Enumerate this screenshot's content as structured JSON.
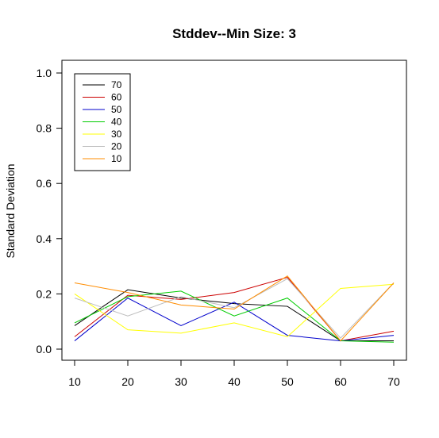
{
  "chart_data": {
    "type": "line",
    "title": "Stddev--Min Size: 3",
    "xlabel": "",
    "ylabel": "Standard Deviation",
    "x": [
      10,
      20,
      30,
      40,
      50,
      60,
      70
    ],
    "xlim": [
      10,
      70
    ],
    "ylim": [
      0,
      1.0
    ],
    "y_ticks": [
      "0.0",
      "0.2",
      "0.4",
      "0.6",
      "0.8",
      "1.0"
    ],
    "x_ticks": [
      "10",
      "20",
      "30",
      "40",
      "50",
      "60",
      "70"
    ],
    "grid": false,
    "legend_position": "top-left",
    "series": [
      {
        "name": "70",
        "color": "#000000",
        "values": [
          0.085,
          0.215,
          0.185,
          0.165,
          0.155,
          0.03,
          0.03
        ]
      },
      {
        "name": "60",
        "color": "#cc0000",
        "values": [
          0.045,
          0.195,
          0.18,
          0.205,
          0.26,
          0.03,
          0.065
        ]
      },
      {
        "name": "50",
        "color": "#0000cc",
        "values": [
          0.03,
          0.185,
          0.085,
          0.17,
          0.05,
          0.03,
          0.05
        ]
      },
      {
        "name": "40",
        "color": "#00cc00",
        "values": [
          0.095,
          0.19,
          0.21,
          0.12,
          0.185,
          0.03,
          0.025
        ]
      },
      {
        "name": "30",
        "color": "#ffff00",
        "values": [
          0.2,
          0.07,
          0.058,
          0.095,
          0.045,
          0.22,
          0.235
        ]
      },
      {
        "name": "20",
        "color": "#bebebe",
        "values": [
          0.185,
          0.12,
          0.19,
          0.15,
          0.255,
          0.04,
          0.24
        ]
      },
      {
        "name": "10",
        "color": "#ff8c00",
        "values": [
          0.24,
          0.205,
          0.16,
          0.145,
          0.265,
          0.03,
          0.24
        ]
      }
    ]
  }
}
